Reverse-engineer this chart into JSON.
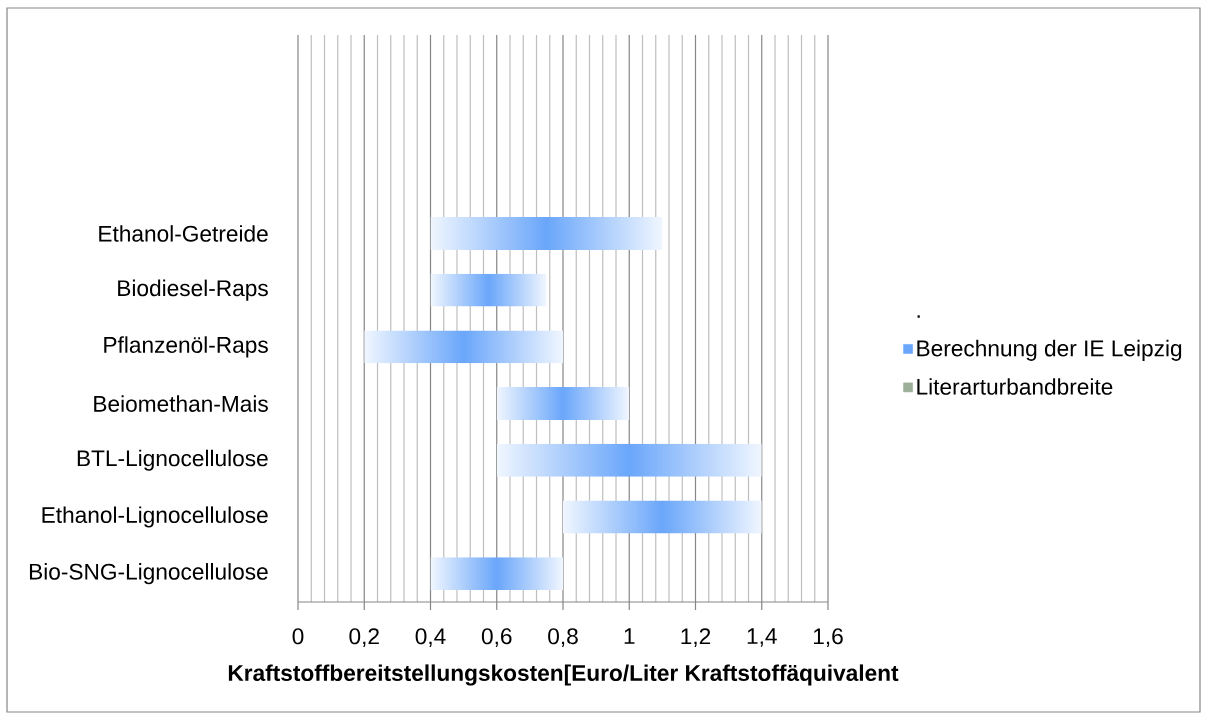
{
  "chart_data": {
    "type": "bar",
    "orientation": "horizontal",
    "categories": [
      null,
      null,
      null,
      "Ethanol-Getreide",
      "Biodiesel-Raps",
      "Pflanzenöl-Raps",
      "Beiomethan-Mais",
      "BTL-Lignocellulose",
      "Ethanol-Lignocellulose",
      "Bio-SNG-Lignocellulose"
    ],
    "series": [
      {
        "name": "Berechnung der IE Leipzig",
        "color": "#6aa6fa",
        "base": [
          null,
          null,
          null,
          0.4,
          0.4,
          0.2,
          0.6,
          0.6,
          0.8,
          0.4
        ],
        "values": [
          null,
          null,
          null,
          0.7,
          0.35,
          0.6,
          0.4,
          0.8,
          0.6,
          0.4
        ]
      },
      {
        "name": "Literarturbandbreite",
        "color": "#9caf98",
        "values": [
          null,
          null,
          null,
          null,
          null,
          null,
          null,
          null,
          null,
          null
        ]
      }
    ],
    "xlabel": "Kraftstoffbereitstellungskosten[Euro/Liter Kraftstoffäquivalent",
    "xlim": [
      0,
      1.6
    ],
    "xticks": [
      0,
      {
        "value": 0.04,
        "label": null
      },
      {
        "value": 0.08,
        "label": null
      },
      {
        "value": 0.12,
        "label": null
      },
      {
        "value": 0.16,
        "label": null
      },
      {
        "value": 0.2,
        "label": "0,2"
      },
      {
        "value": 0.24,
        "label": null
      },
      {
        "value": 0.28,
        "label": null
      },
      {
        "value": 0.32,
        "label": null
      },
      {
        "value": 0.36,
        "label": null
      },
      {
        "value": 0.4,
        "label": "0,4"
      },
      {
        "value": 0.44,
        "label": null
      },
      {
        "value": 0.48,
        "label": null
      },
      {
        "value": 0.52,
        "label": null
      },
      {
        "value": 0.56,
        "label": null
      },
      {
        "value": 0.6,
        "label": "0,6"
      },
      {
        "value": 0.64,
        "label": null
      },
      {
        "value": 0.68,
        "label": null
      },
      {
        "value": 0.72,
        "label": null
      },
      {
        "value": 0.76,
        "label": null
      },
      {
        "value": 0.8,
        "label": "0,8"
      },
      {
        "value": 0.84,
        "label": null
      },
      {
        "value": 0.88,
        "label": null
      },
      {
        "value": 0.92,
        "label": null
      },
      {
        "value": 0.96,
        "label": null
      },
      1,
      {
        "value": 1.04,
        "label": null
      },
      {
        "value": 1.08,
        "label": null
      },
      {
        "value": 1.12,
        "label": null
      },
      {
        "value": 1.16,
        "label": null
      },
      {
        "value": 1.2,
        "label": "1,2"
      },
      {
        "value": 1.24,
        "label": null
      },
      {
        "value": 1.28,
        "label": null
      },
      {
        "value": 1.32,
        "label": null
      },
      {
        "value": 1.36,
        "label": null
      },
      {
        "value": 1.4,
        "label": "1,4"
      },
      {
        "value": 1.44,
        "label": null
      },
      {
        "value": 1.48,
        "label": null
      },
      {
        "value": 1.52,
        "label": null
      },
      {
        "value": 1.56,
        "label": null
      },
      {
        "value": 1.6,
        "label": "1,6"
      }
    ],
    "grid": "x",
    "legend": "right",
    "legend_title": "."
  }
}
